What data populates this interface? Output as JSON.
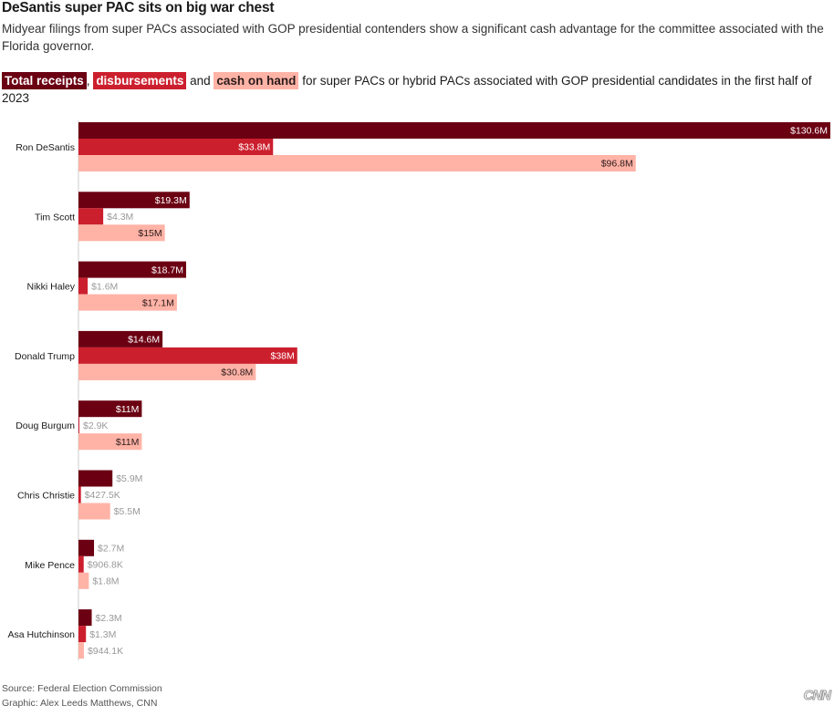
{
  "title": "DeSantis super PAC sits on big war chest",
  "subtitle": "Midyear filings from super PACs associated with GOP presidential contenders show a significant cash advantage for the committee associated with the Florida governor.",
  "legend": {
    "receipts": "Total receipts",
    "sep1": ",",
    "disbursements": "disbursements",
    "sep2": "and",
    "cash": "cash on hand",
    "rest": "for super PACs or hybrid PACs associated with GOP presidential candidates in the first half of 2023"
  },
  "colors": {
    "receipts": "#6b0012",
    "disbursements": "#cc1f2e",
    "cash": "#ffb3a6",
    "label_inside": "#ffffff",
    "label_outside": "#999999"
  },
  "chart_data": {
    "type": "bar",
    "orientation": "horizontal",
    "units": "millions of dollars",
    "categories": [
      "Ron DeSantis",
      "Tim Scott",
      "Nikki Haley",
      "Donald Trump",
      "Doug Burgum",
      "Chris Christie",
      "Mike Pence",
      "Asa Hutchinson"
    ],
    "series": [
      {
        "name": "Total receipts",
        "color": "#6b0012",
        "values": [
          130.6,
          19.3,
          18.7,
          14.6,
          11,
          5.9,
          2.7,
          2.3
        ],
        "labels": [
          "$130.6M",
          "$19.3M",
          "$18.7M",
          "$14.6M",
          "$11M",
          "$5.9M",
          "$2.7M",
          "$2.3M"
        ]
      },
      {
        "name": "disbursements",
        "color": "#cc1f2e",
        "values": [
          33.8,
          4.3,
          1.6,
          38,
          0.0029,
          0.4275,
          0.9068,
          1.3
        ],
        "labels": [
          "$33.8M",
          "$4.3M",
          "$1.6M",
          "$38M",
          "$2.9K",
          "$427.5K",
          "$906.8K",
          "$1.3M"
        ]
      },
      {
        "name": "cash on hand",
        "color": "#ffb3a6",
        "values": [
          96.8,
          15,
          17.1,
          30.8,
          11,
          5.5,
          1.8,
          0.9441
        ],
        "labels": [
          "$96.8M",
          "$15M",
          "$17.1M",
          "$30.8M",
          "$11M",
          "$5.5M",
          "$1.8M",
          "$944.1K"
        ]
      }
    ],
    "xlim": [
      0,
      130.6
    ],
    "grid": false,
    "legend": "inline-top"
  },
  "footer": {
    "source": "Source: Federal Election Commission",
    "graphic": "Graphic: Alex Leeds Matthews, CNN"
  },
  "logo_text": "CNN"
}
